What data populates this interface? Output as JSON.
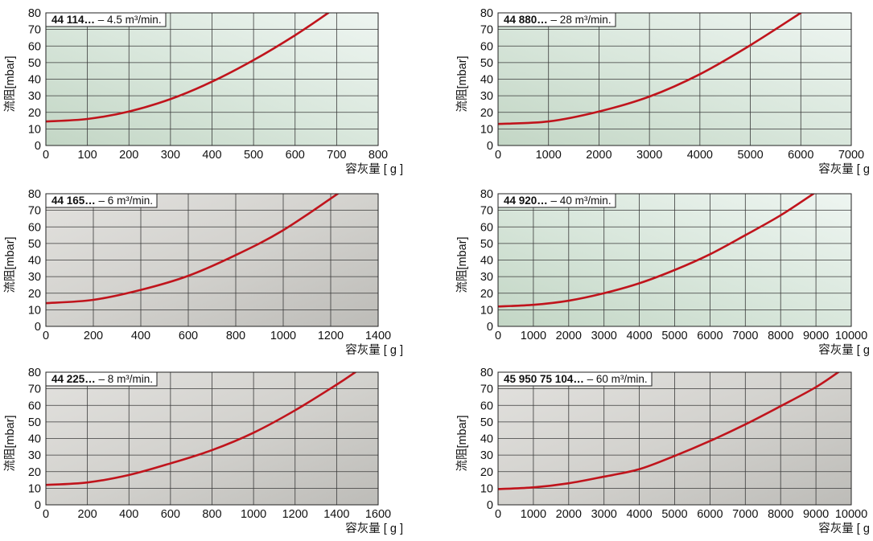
{
  "y_axis_label": "流阻[mbar]",
  "x_axis_label": "容灰量 [ g ]",
  "curve_color": "#c0141c",
  "chart_data": [
    {
      "type": "line",
      "title_bold": "44 114…",
      "title_rest": "– 4.5 m³/min.",
      "xlabel": "容灰量 [ g ]",
      "ylabel": "流阻[mbar]",
      "xlim": [
        0,
        800
      ],
      "ylim": [
        0,
        80
      ],
      "xticks": [
        0,
        100,
        200,
        300,
        400,
        500,
        600,
        700,
        800
      ],
      "yticks": [
        0,
        10,
        20,
        30,
        40,
        50,
        60,
        70,
        80
      ],
      "grid": true,
      "background": "green",
      "series": [
        {
          "x": [
            0,
            100,
            200,
            300,
            400,
            500,
            600,
            680
          ],
          "y": [
            14.5,
            16,
            20.5,
            28,
            38.5,
            51.5,
            66.5,
            80
          ]
        }
      ]
    },
    {
      "type": "line",
      "title_bold": "44 880…",
      "title_rest": "– 28 m³/min.",
      "xlabel": "容灰量 [ g ]",
      "ylabel": "流阻[mbar]",
      "xlim": [
        0,
        7000
      ],
      "ylim": [
        0,
        80
      ],
      "xticks": [
        0,
        1000,
        2000,
        3000,
        4000,
        5000,
        6000,
        7000
      ],
      "yticks": [
        0,
        10,
        20,
        30,
        40,
        50,
        60,
        70,
        80
      ],
      "grid": true,
      "background": "green",
      "series": [
        {
          "x": [
            0,
            1000,
            2000,
            3000,
            4000,
            5000,
            6000
          ],
          "y": [
            13,
            14.5,
            20.5,
            29.5,
            43,
            60.5,
            80
          ]
        }
      ]
    },
    {
      "type": "line",
      "title_bold": "44  165…",
      "title_rest": "– 6 m³/min.",
      "xlabel": "容灰量 [ g ]",
      "ylabel": "流阻[mbar]",
      "xlim": [
        0,
        1400
      ],
      "ylim": [
        0,
        80
      ],
      "xticks": [
        0,
        200,
        400,
        600,
        800,
        1000,
        1200,
        1400
      ],
      "yticks": [
        0,
        10,
        20,
        30,
        40,
        50,
        60,
        70,
        80
      ],
      "grid": true,
      "background": "gray",
      "series": [
        {
          "x": [
            0,
            200,
            400,
            600,
            800,
            1000,
            1240
          ],
          "y": [
            14,
            16,
            22,
            30.5,
            43,
            58,
            81
          ]
        }
      ]
    },
    {
      "type": "line",
      "title_bold": "44 920…",
      "title_rest": "– 40 m³/min.",
      "xlabel": "容灰量 [ g ]",
      "ylabel": "流阻[mbar]",
      "xlim": [
        0,
        10000
      ],
      "ylim": [
        0,
        80
      ],
      "xticks": [
        0,
        1000,
        2000,
        3000,
        4000,
        5000,
        6000,
        7000,
        8000,
        9000,
        10000
      ],
      "yticks": [
        0,
        10,
        20,
        30,
        40,
        50,
        60,
        70,
        80
      ],
      "grid": true,
      "background": "green",
      "series": [
        {
          "x": [
            0,
            1000,
            2000,
            3000,
            4000,
            5000,
            6000,
            7000,
            8000,
            9000
          ],
          "y": [
            12,
            13,
            15.5,
            20,
            26,
            34,
            43.5,
            55,
            67,
            81
          ]
        }
      ]
    },
    {
      "type": "line",
      "title_bold": "44  225…",
      "title_rest": "– 8 m³/min.",
      "xlabel": "容灰量 [ g ]",
      "ylabel": "流阻[mbar]",
      "xlim": [
        0,
        1600
      ],
      "ylim": [
        0,
        80
      ],
      "xticks": [
        0,
        200,
        400,
        600,
        800,
        1000,
        1200,
        1400,
        1600
      ],
      "yticks": [
        0,
        10,
        20,
        30,
        40,
        50,
        60,
        70,
        80
      ],
      "grid": true,
      "background": "gray",
      "series": [
        {
          "x": [
            0,
            200,
            400,
            600,
            800,
            1000,
            1200,
            1400,
            1490
          ],
          "y": [
            12,
            13.5,
            18,
            25,
            33,
            43.5,
            57,
            72.5,
            80
          ]
        }
      ]
    },
    {
      "type": "line",
      "title_bold": "45 950 75 104…",
      "title_rest": "– 60 m³/min.",
      "xlabel": "容灰量 [ g ]",
      "ylabel": "流阻[mbar]",
      "xlim": [
        0,
        10000
      ],
      "ylim": [
        0,
        80
      ],
      "xticks": [
        0,
        1000,
        2000,
        3000,
        4000,
        5000,
        6000,
        7000,
        8000,
        9000,
        10000
      ],
      "yticks": [
        0,
        10,
        20,
        30,
        40,
        50,
        60,
        70,
        80
      ],
      "grid": true,
      "background": "gray",
      "series": [
        {
          "x": [
            0,
            1000,
            2000,
            3000,
            4000,
            5000,
            6000,
            7000,
            8000,
            9000,
            9700
          ],
          "y": [
            9.5,
            10.5,
            13,
            17,
            21.5,
            29.5,
            38.5,
            48.5,
            59.5,
            71,
            81
          ]
        }
      ]
    }
  ]
}
